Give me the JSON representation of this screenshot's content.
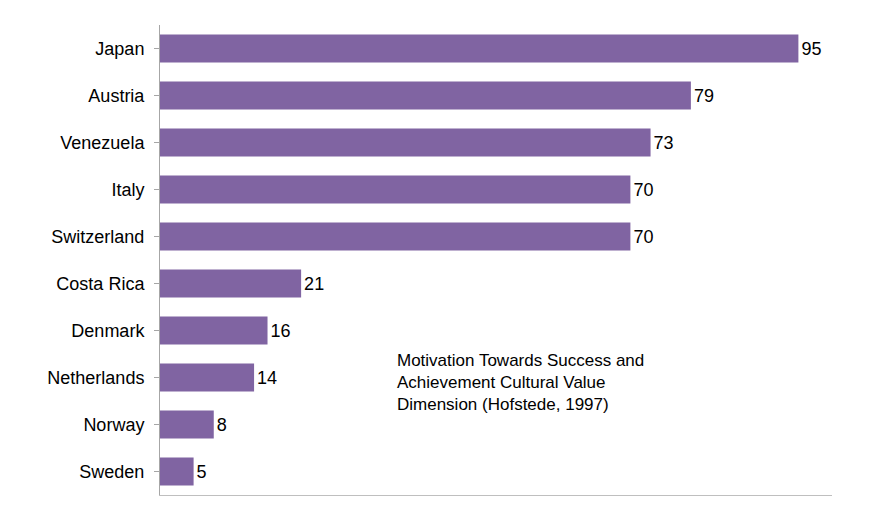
{
  "chart_data": {
    "type": "bar",
    "orientation": "horizontal",
    "categories": [
      "Japan",
      "Austria",
      "Venezuela",
      "Italy",
      "Switzerland",
      "Costa Rica",
      "Denmark",
      "Netherlands",
      "Norway",
      "Sweden"
    ],
    "values": [
      95,
      79,
      73,
      70,
      70,
      21,
      16,
      14,
      8,
      5
    ],
    "color": "#8064a2",
    "xlim": [
      0,
      100
    ],
    "grid": false,
    "data_labels": true,
    "tick_labels": "y",
    "annotations": [
      {
        "text": "Motivation Towards Success and\nAchievement Cultural Value\nDimension (Hofstede, 1997)"
      }
    ]
  }
}
